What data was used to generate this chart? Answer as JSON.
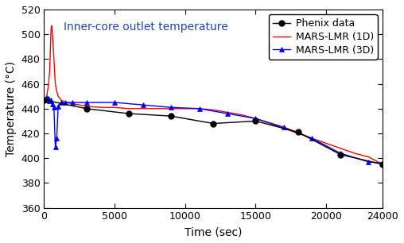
{
  "title": "Inner-core outlet temperature",
  "xlabel": "Time (sec)",
  "ylabel": "Temperature (°C)",
  "xlim": [
    0,
    24000
  ],
  "ylim": [
    360,
    520
  ],
  "yticks": [
    360,
    380,
    400,
    420,
    440,
    460,
    480,
    500,
    520
  ],
  "xticks": [
    0,
    5000,
    10000,
    15000,
    20000,
    24000
  ],
  "background_color": "#ffffff",
  "phenix_x": [
    0,
    3000,
    6000,
    9000,
    12000,
    15000,
    18000,
    21000,
    24000
  ],
  "phenix_y": [
    447,
    440,
    436,
    434,
    428,
    430,
    421,
    403,
    395
  ],
  "mars1d_x": [
    0,
    100,
    200,
    300,
    400,
    500,
    550,
    600,
    650,
    700,
    750,
    800,
    900,
    1000,
    1200,
    1500,
    2000,
    2500,
    3000,
    4000,
    5000,
    6000,
    7000,
    8000,
    9000,
    10000,
    11000,
    12000,
    13000,
    14000,
    15000,
    16000,
    17000,
    18000,
    19000,
    20000,
    21000,
    22000,
    23000,
    24000
  ],
  "mars1d_y": [
    447,
    448,
    451,
    458,
    470,
    505,
    507,
    500,
    490,
    480,
    470,
    460,
    454,
    450,
    447,
    445,
    444,
    443,
    442,
    441,
    441,
    440,
    440,
    440,
    440,
    440,
    440,
    439,
    437,
    435,
    432,
    428,
    424,
    420,
    416,
    412,
    408,
    404,
    401,
    395
  ],
  "mars3d_x": [
    0,
    100,
    200,
    300,
    400,
    500,
    600,
    700,
    800,
    900,
    1000,
    1200,
    1500,
    2000,
    3000,
    5000,
    7000,
    9000,
    11000,
    13000,
    15000,
    17000,
    19000,
    21000,
    23000,
    24000
  ],
  "mars3d_y": [
    447,
    447,
    449,
    448,
    446,
    447,
    444,
    441,
    409,
    416,
    442,
    445,
    445,
    445,
    445,
    445,
    443,
    441,
    440,
    436,
    432,
    425,
    416,
    404,
    397,
    396
  ],
  "phenix_color": "#000000",
  "mars1d_color": "#ff0000",
  "mars3d_color": "#0000ff",
  "phenix_label": "Phenix data",
  "mars1d_label": "MARS-LMR (1D)",
  "mars3d_label": "MARS-LMR (3D)",
  "title_fontsize": 10,
  "label_fontsize": 10,
  "tick_fontsize": 9,
  "legend_fontsize": 9
}
